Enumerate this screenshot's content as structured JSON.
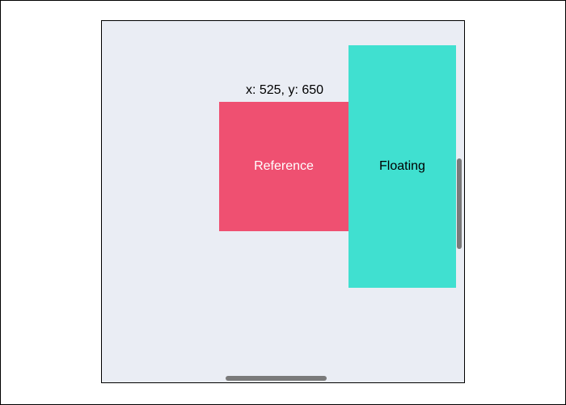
{
  "scroll_area": {
    "coords_text": "x: 525, y: 650",
    "reference_label": "Reference",
    "floating_label": "Floating"
  },
  "colors": {
    "page_background": "#ffffff",
    "scroll_area_background": "#eaedf4",
    "reference_fill": "#ef5071",
    "floating_fill": "#40e0d0",
    "scrollbar_thumb": "#7a7a7a"
  }
}
